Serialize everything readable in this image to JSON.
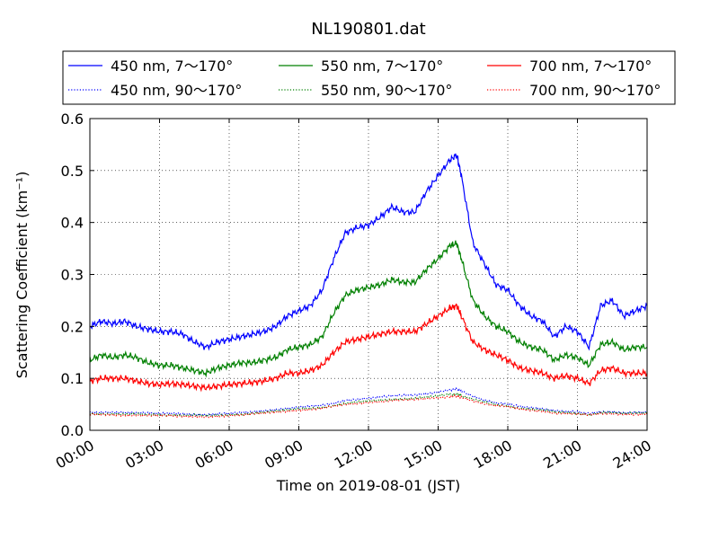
{
  "chart_data": {
    "type": "line",
    "title": "NL190801.dat",
    "xlabel": "Time on 2019-08-01 (JST)",
    "ylabel": "Scattering Coefficient (km⁻¹)",
    "xlim": [
      0,
      24
    ],
    "ylim": [
      0,
      0.6
    ],
    "x_ticks": [
      0,
      3,
      6,
      9,
      12,
      15,
      18,
      21,
      24
    ],
    "x_tick_labels": [
      "00:00",
      "03:00",
      "06:00",
      "09:00",
      "12:00",
      "15:00",
      "18:00",
      "21:00",
      "24:00"
    ],
    "y_ticks": [
      0,
      0.1,
      0.2,
      0.3,
      0.4,
      0.5,
      0.6
    ],
    "y_tick_labels": [
      "0.0",
      "0.1",
      "0.2",
      "0.3",
      "0.4",
      "0.5",
      "0.6"
    ],
    "grid": true,
    "legend_placement": "top",
    "x": [
      0,
      0.5,
      1,
      1.5,
      2,
      2.5,
      3,
      3.5,
      4,
      4.5,
      5,
      5.5,
      6,
      6.5,
      7,
      7.5,
      8,
      8.5,
      9,
      9.5,
      10,
      10.5,
      11,
      11.5,
      12,
      12.5,
      13,
      13.5,
      14,
      14.5,
      15,
      15.5,
      15.8,
      16,
      16.5,
      17,
      17.5,
      18,
      18.5,
      19,
      19.5,
      20,
      20.5,
      21,
      21.5,
      22,
      22.5,
      23,
      23.5,
      24
    ],
    "series": [
      {
        "name": "450 nm, 7～170°",
        "color": "#0000ff",
        "style": "solid",
        "values": [
          0.2,
          0.21,
          0.205,
          0.21,
          0.2,
          0.195,
          0.19,
          0.19,
          0.185,
          0.17,
          0.16,
          0.17,
          0.175,
          0.18,
          0.185,
          0.19,
          0.2,
          0.22,
          0.23,
          0.24,
          0.27,
          0.33,
          0.38,
          0.39,
          0.395,
          0.41,
          0.43,
          0.42,
          0.42,
          0.46,
          0.49,
          0.52,
          0.53,
          0.49,
          0.36,
          0.32,
          0.28,
          0.27,
          0.24,
          0.22,
          0.21,
          0.18,
          0.2,
          0.19,
          0.16,
          0.24,
          0.25,
          0.22,
          0.23,
          0.24
        ]
      },
      {
        "name": "550 nm, 7～170°",
        "color": "#008000",
        "style": "solid",
        "values": [
          0.135,
          0.145,
          0.14,
          0.145,
          0.14,
          0.13,
          0.125,
          0.125,
          0.12,
          0.115,
          0.11,
          0.12,
          0.125,
          0.13,
          0.13,
          0.135,
          0.14,
          0.155,
          0.16,
          0.165,
          0.18,
          0.225,
          0.26,
          0.27,
          0.275,
          0.28,
          0.29,
          0.285,
          0.285,
          0.31,
          0.33,
          0.355,
          0.36,
          0.33,
          0.25,
          0.22,
          0.2,
          0.19,
          0.17,
          0.16,
          0.155,
          0.135,
          0.145,
          0.14,
          0.125,
          0.165,
          0.17,
          0.155,
          0.16,
          0.16
        ]
      },
      {
        "name": "700 nm, 7～170°",
        "color": "#ff0000",
        "style": "solid",
        "values": [
          0.095,
          0.1,
          0.1,
          0.1,
          0.095,
          0.09,
          0.088,
          0.09,
          0.088,
          0.085,
          0.082,
          0.085,
          0.088,
          0.09,
          0.092,
          0.095,
          0.1,
          0.11,
          0.11,
          0.115,
          0.125,
          0.15,
          0.17,
          0.175,
          0.18,
          0.185,
          0.19,
          0.19,
          0.19,
          0.205,
          0.22,
          0.235,
          0.24,
          0.22,
          0.17,
          0.155,
          0.145,
          0.135,
          0.12,
          0.115,
          0.11,
          0.1,
          0.105,
          0.1,
          0.09,
          0.115,
          0.12,
          0.11,
          0.11,
          0.11
        ]
      },
      {
        "name": "450 nm, 90～170°",
        "color": "#0000ff",
        "style": "dotted",
        "values": [
          0.035,
          0.035,
          0.035,
          0.034,
          0.033,
          0.033,
          0.032,
          0.033,
          0.032,
          0.031,
          0.03,
          0.031,
          0.032,
          0.034,
          0.036,
          0.038,
          0.04,
          0.042,
          0.044,
          0.046,
          0.048,
          0.052,
          0.058,
          0.06,
          0.062,
          0.064,
          0.066,
          0.067,
          0.068,
          0.071,
          0.074,
          0.078,
          0.079,
          0.075,
          0.066,
          0.058,
          0.052,
          0.05,
          0.046,
          0.044,
          0.042,
          0.038,
          0.036,
          0.035,
          0.032,
          0.036,
          0.036,
          0.034,
          0.035,
          0.035
        ]
      },
      {
        "name": "550 nm, 90～170°",
        "color": "#008000",
        "style": "dotted",
        "values": [
          0.032,
          0.032,
          0.032,
          0.031,
          0.031,
          0.03,
          0.03,
          0.03,
          0.029,
          0.029,
          0.028,
          0.029,
          0.03,
          0.031,
          0.033,
          0.035,
          0.037,
          0.039,
          0.041,
          0.042,
          0.044,
          0.048,
          0.052,
          0.054,
          0.056,
          0.058,
          0.06,
          0.061,
          0.062,
          0.064,
          0.066,
          0.069,
          0.07,
          0.067,
          0.06,
          0.054,
          0.049,
          0.047,
          0.043,
          0.041,
          0.039,
          0.035,
          0.034,
          0.033,
          0.03,
          0.034,
          0.034,
          0.032,
          0.033,
          0.033
        ]
      },
      {
        "name": "700 nm, 90～170°",
        "color": "#ff0000",
        "style": "dotted",
        "values": [
          0.03,
          0.03,
          0.03,
          0.029,
          0.029,
          0.028,
          0.028,
          0.028,
          0.027,
          0.027,
          0.026,
          0.027,
          0.028,
          0.029,
          0.031,
          0.033,
          0.035,
          0.037,
          0.039,
          0.04,
          0.042,
          0.046,
          0.05,
          0.052,
          0.054,
          0.055,
          0.057,
          0.058,
          0.059,
          0.061,
          0.063,
          0.065,
          0.066,
          0.063,
          0.057,
          0.051,
          0.047,
          0.045,
          0.041,
          0.039,
          0.037,
          0.033,
          0.032,
          0.031,
          0.029,
          0.032,
          0.032,
          0.031,
          0.031,
          0.031
        ]
      }
    ]
  }
}
